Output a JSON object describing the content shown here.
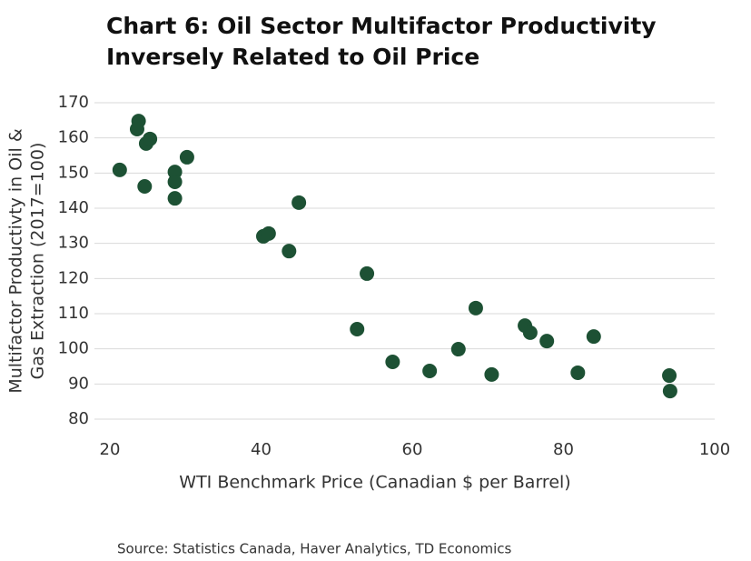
{
  "chart_data": {
    "type": "scatter",
    "title": [
      "Chart 6: Oil Sector Multifactor Productivity",
      "Inversely Related to Oil Price"
    ],
    "xlabel": "WTI Benchmark Price (Canadian $ per Barrel)",
    "ylabel": [
      "Multifactor Productivty in Oil &",
      "Gas Extraction (2017=100)"
    ],
    "source": "Source: Statistics Canada, Haver Analytics, TD Economics",
    "color": "#1d5134",
    "grid": true,
    "xlim": [
      20,
      100
    ],
    "xticks": [
      20,
      40,
      60,
      80,
      100
    ],
    "ylim": [
      80,
      170
    ],
    "yticks": [
      80,
      90,
      100,
      110,
      120,
      130,
      140,
      150,
      160,
      170
    ],
    "x": [
      21.3,
      23.8,
      23.6,
      24.8,
      25.3,
      24.6,
      30.2,
      28.6,
      28.6,
      28.6,
      45.0,
      40.3,
      41.0,
      43.7,
      54.0,
      52.7,
      57.4,
      62.3,
      66.1,
      68.4,
      70.5,
      74.9,
      75.6,
      77.8,
      84.0,
      81.9,
      94.0,
      94.1
    ],
    "values": [
      150.9,
      164.8,
      162.5,
      158.4,
      159.7,
      146.2,
      154.5,
      150.3,
      147.5,
      142.8,
      141.6,
      132.0,
      132.8,
      127.8,
      121.4,
      105.6,
      96.3,
      93.7,
      99.9,
      111.6,
      92.7,
      106.6,
      104.6,
      102.2,
      103.5,
      93.2,
      92.4,
      88.0
    ]
  }
}
